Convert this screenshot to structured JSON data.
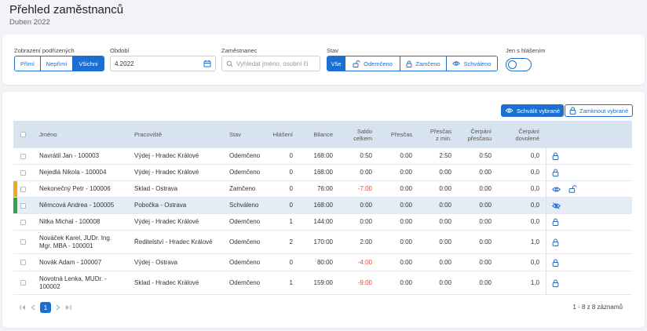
{
  "page": {
    "title": "Přehled zaměstnanců",
    "subtitle": "Duben 2022"
  },
  "filters": {
    "subordinates_label": "Zobrazení podřízených",
    "subordinates_options": [
      "Přímí",
      "Nepřímí",
      "Všichni"
    ],
    "subordinates_selected": "Všichni",
    "period_label": "Období",
    "period_value": "4.2022",
    "employee_label": "Zaměstnanec",
    "employee_placeholder": "Vyhledat jméno, osobní čí",
    "status_label": "Stav",
    "status_options": [
      "Vše",
      "Odemčeno",
      "Zamčeno",
      "Schváleno"
    ],
    "status_selected": "Vše",
    "report_only_label": "Jen s hlášením",
    "report_only_on": false
  },
  "actions": {
    "approve_label": "Schválit vybrané",
    "lock_label": "Zamknout vybrané"
  },
  "table": {
    "headers": {
      "name": "Jméno",
      "workplace": "Pracoviště",
      "status": "Stav",
      "reports": "Hlášení",
      "balance": "Bilance",
      "saldo_1": "Saldo",
      "saldo_2": "celkem",
      "overtime": "Přesčas",
      "ot_prev_1": "Přesčas",
      "ot_prev_2": "z min.",
      "ot_used_1": "Čerpání",
      "ot_used_2": "přesčasu",
      "vac_1": "Čerpání",
      "vac_2": "dovolené"
    },
    "rows": [
      {
        "name": "Navrátil Jan - 100003",
        "workplace": "Výdej - Hradec Králové",
        "status": "Odemčeno",
        "reports": "0",
        "balance": "168:00",
        "saldo": "0:50",
        "overtime": "0:00",
        "ot_prev": "2:50",
        "ot_used": "0:50",
        "vacation": "0,0",
        "marker": "",
        "icons": [
          "lock-icon"
        ]
      },
      {
        "name": "Nejedlá Nikola - 100004",
        "workplace": "Výdej - Hradec Králové",
        "status": "Odemčeno",
        "reports": "0",
        "balance": "168:00",
        "saldo": "0:00",
        "overtime": "0:00",
        "ot_prev": "0:00",
        "ot_used": "0:00",
        "vacation": "0,0",
        "marker": "",
        "icons": [
          "lock-icon"
        ]
      },
      {
        "name": "Nekonečný Petr - 100006",
        "workplace": "Sklad - Ostrava",
        "status": "Zamčeno",
        "reports": "0",
        "balance": "76:00",
        "saldo": "-7:00",
        "overtime": "0:00",
        "ot_prev": "0:00",
        "ot_used": "0:00",
        "vacation": "0,0",
        "marker": "#f5a623",
        "icons": [
          "eye-icon",
          "unlock-icon"
        ]
      },
      {
        "name": "Němcová Andrea - 100005",
        "workplace": "Pobočka - Ostrava",
        "status": "Schváleno",
        "reports": "0",
        "balance": "168:00",
        "saldo": "0:00",
        "overtime": "0:00",
        "ot_prev": "0:00",
        "ot_used": "0:00",
        "vacation": "0,0",
        "marker": "#2ea44f",
        "icons": [
          "eye-off-icon"
        ]
      },
      {
        "name": "Nitka Michal - 100008",
        "workplace": "Výdej - Hradec Králové",
        "status": "Odemčeno",
        "reports": "1",
        "balance": "144:00",
        "saldo": "0:00",
        "overtime": "0:00",
        "ot_prev": "0:00",
        "ot_used": "0:00",
        "vacation": "0,0",
        "marker": "",
        "icons": [
          "lock-icon"
        ]
      },
      {
        "name": "Nováček Karel, JUDr. Ing. Mgr. MBA - 100001",
        "workplace": "Ředitelství - Hradec Králové",
        "status": "Odemčeno",
        "reports": "2",
        "balance": "170:00",
        "saldo": "2:00",
        "overtime": "0:00",
        "ot_prev": "0:00",
        "ot_used": "0:00",
        "vacation": "1,0",
        "marker": "",
        "icons": [
          "lock-icon"
        ]
      },
      {
        "name": "Novák Adam - 100007",
        "workplace": "Výdej - Ostrava",
        "status": "Odemčeno",
        "reports": "0",
        "balance": "80:00",
        "saldo": "-4:00",
        "overtime": "0:00",
        "ot_prev": "0:00",
        "ot_used": "0:00",
        "vacation": "0,0",
        "marker": "",
        "icons": [
          "lock-icon"
        ]
      },
      {
        "name": "Novotná Lenka, MUDr. - 100002",
        "workplace": "Sklad - Hradec Králové",
        "status": "Odemčeno",
        "reports": "1",
        "balance": "159:00",
        "saldo": "-9:00",
        "overtime": "0:00",
        "ot_prev": "0:00",
        "ot_used": "0:00",
        "vacation": "1,0",
        "marker": "",
        "icons": [
          "lock-icon"
        ]
      }
    ],
    "selected_row_index": 3
  },
  "pagination": {
    "current_page": "1",
    "summary": "1 - 8 z 8 záznamů"
  },
  "colors": {
    "accent": "#1a6fd0",
    "negative": "#e04b3a",
    "header_bg": "#d8e3f0",
    "locked_marker": "#f5a623",
    "approved_marker": "#2ea44f"
  }
}
